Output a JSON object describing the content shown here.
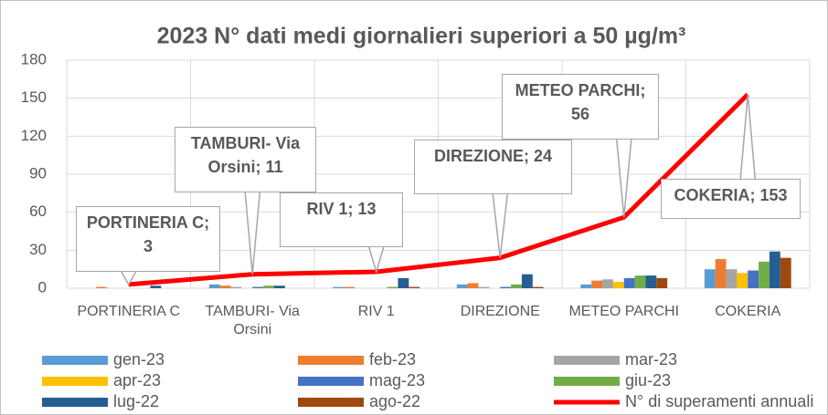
{
  "chart_data": {
    "type": "bar_line",
    "title": "2023 N° dati medi giornalieri superiori a 50 µg/m³",
    "categories": [
      "PORTINERIA C",
      "TAMBURI- Via Orsini",
      "RIV 1",
      "DIREZIONE",
      "METEO PARCHI",
      "COKERIA"
    ],
    "ylim": [
      0,
      180
    ],
    "yticks": [
      0,
      30,
      60,
      90,
      120,
      150,
      180
    ],
    "grid": true,
    "series": [
      {
        "name": "gen-23",
        "type": "bar",
        "color": "#5b9bd5",
        "values": [
          0,
          3,
          1,
          3,
          3,
          15
        ]
      },
      {
        "name": "feb-23",
        "type": "bar",
        "color": "#ed7d31",
        "values": [
          1,
          2,
          1,
          4,
          6,
          23
        ]
      },
      {
        "name": "mar-23",
        "type": "bar",
        "color": "#a5a5a5",
        "values": [
          0,
          1,
          0,
          1,
          7,
          15
        ]
      },
      {
        "name": "apr-23",
        "type": "bar",
        "color": "#ffc000",
        "values": [
          0,
          0,
          0,
          0,
          5,
          12
        ]
      },
      {
        "name": "mag-23",
        "type": "bar",
        "color": "#4472c4",
        "values": [
          0,
          1,
          0,
          1,
          8,
          14
        ]
      },
      {
        "name": "giu-23",
        "type": "bar",
        "color": "#70ad47",
        "values": [
          0,
          2,
          1,
          3,
          10,
          21
        ]
      },
      {
        "name": "lug-22",
        "type": "bar",
        "color": "#255e91",
        "values": [
          2,
          2,
          8,
          11,
          10,
          29
        ]
      },
      {
        "name": "ago-22",
        "type": "bar",
        "color": "#9e480e",
        "values": [
          0,
          0,
          1,
          1,
          8,
          24
        ]
      },
      {
        "name": "N° di superamenti annuali",
        "type": "line",
        "color": "#ff0000",
        "values": [
          3,
          11,
          13,
          24,
          56,
          153
        ],
        "value_labels": [
          "PORTINERIA C; 3",
          "TAMBURI- Via Orsini; 11",
          "RIV 1; 13",
          "DIREZIONE; 24",
          "METEO PARCHI; 56",
          "COKERIA; 153"
        ]
      }
    ]
  }
}
